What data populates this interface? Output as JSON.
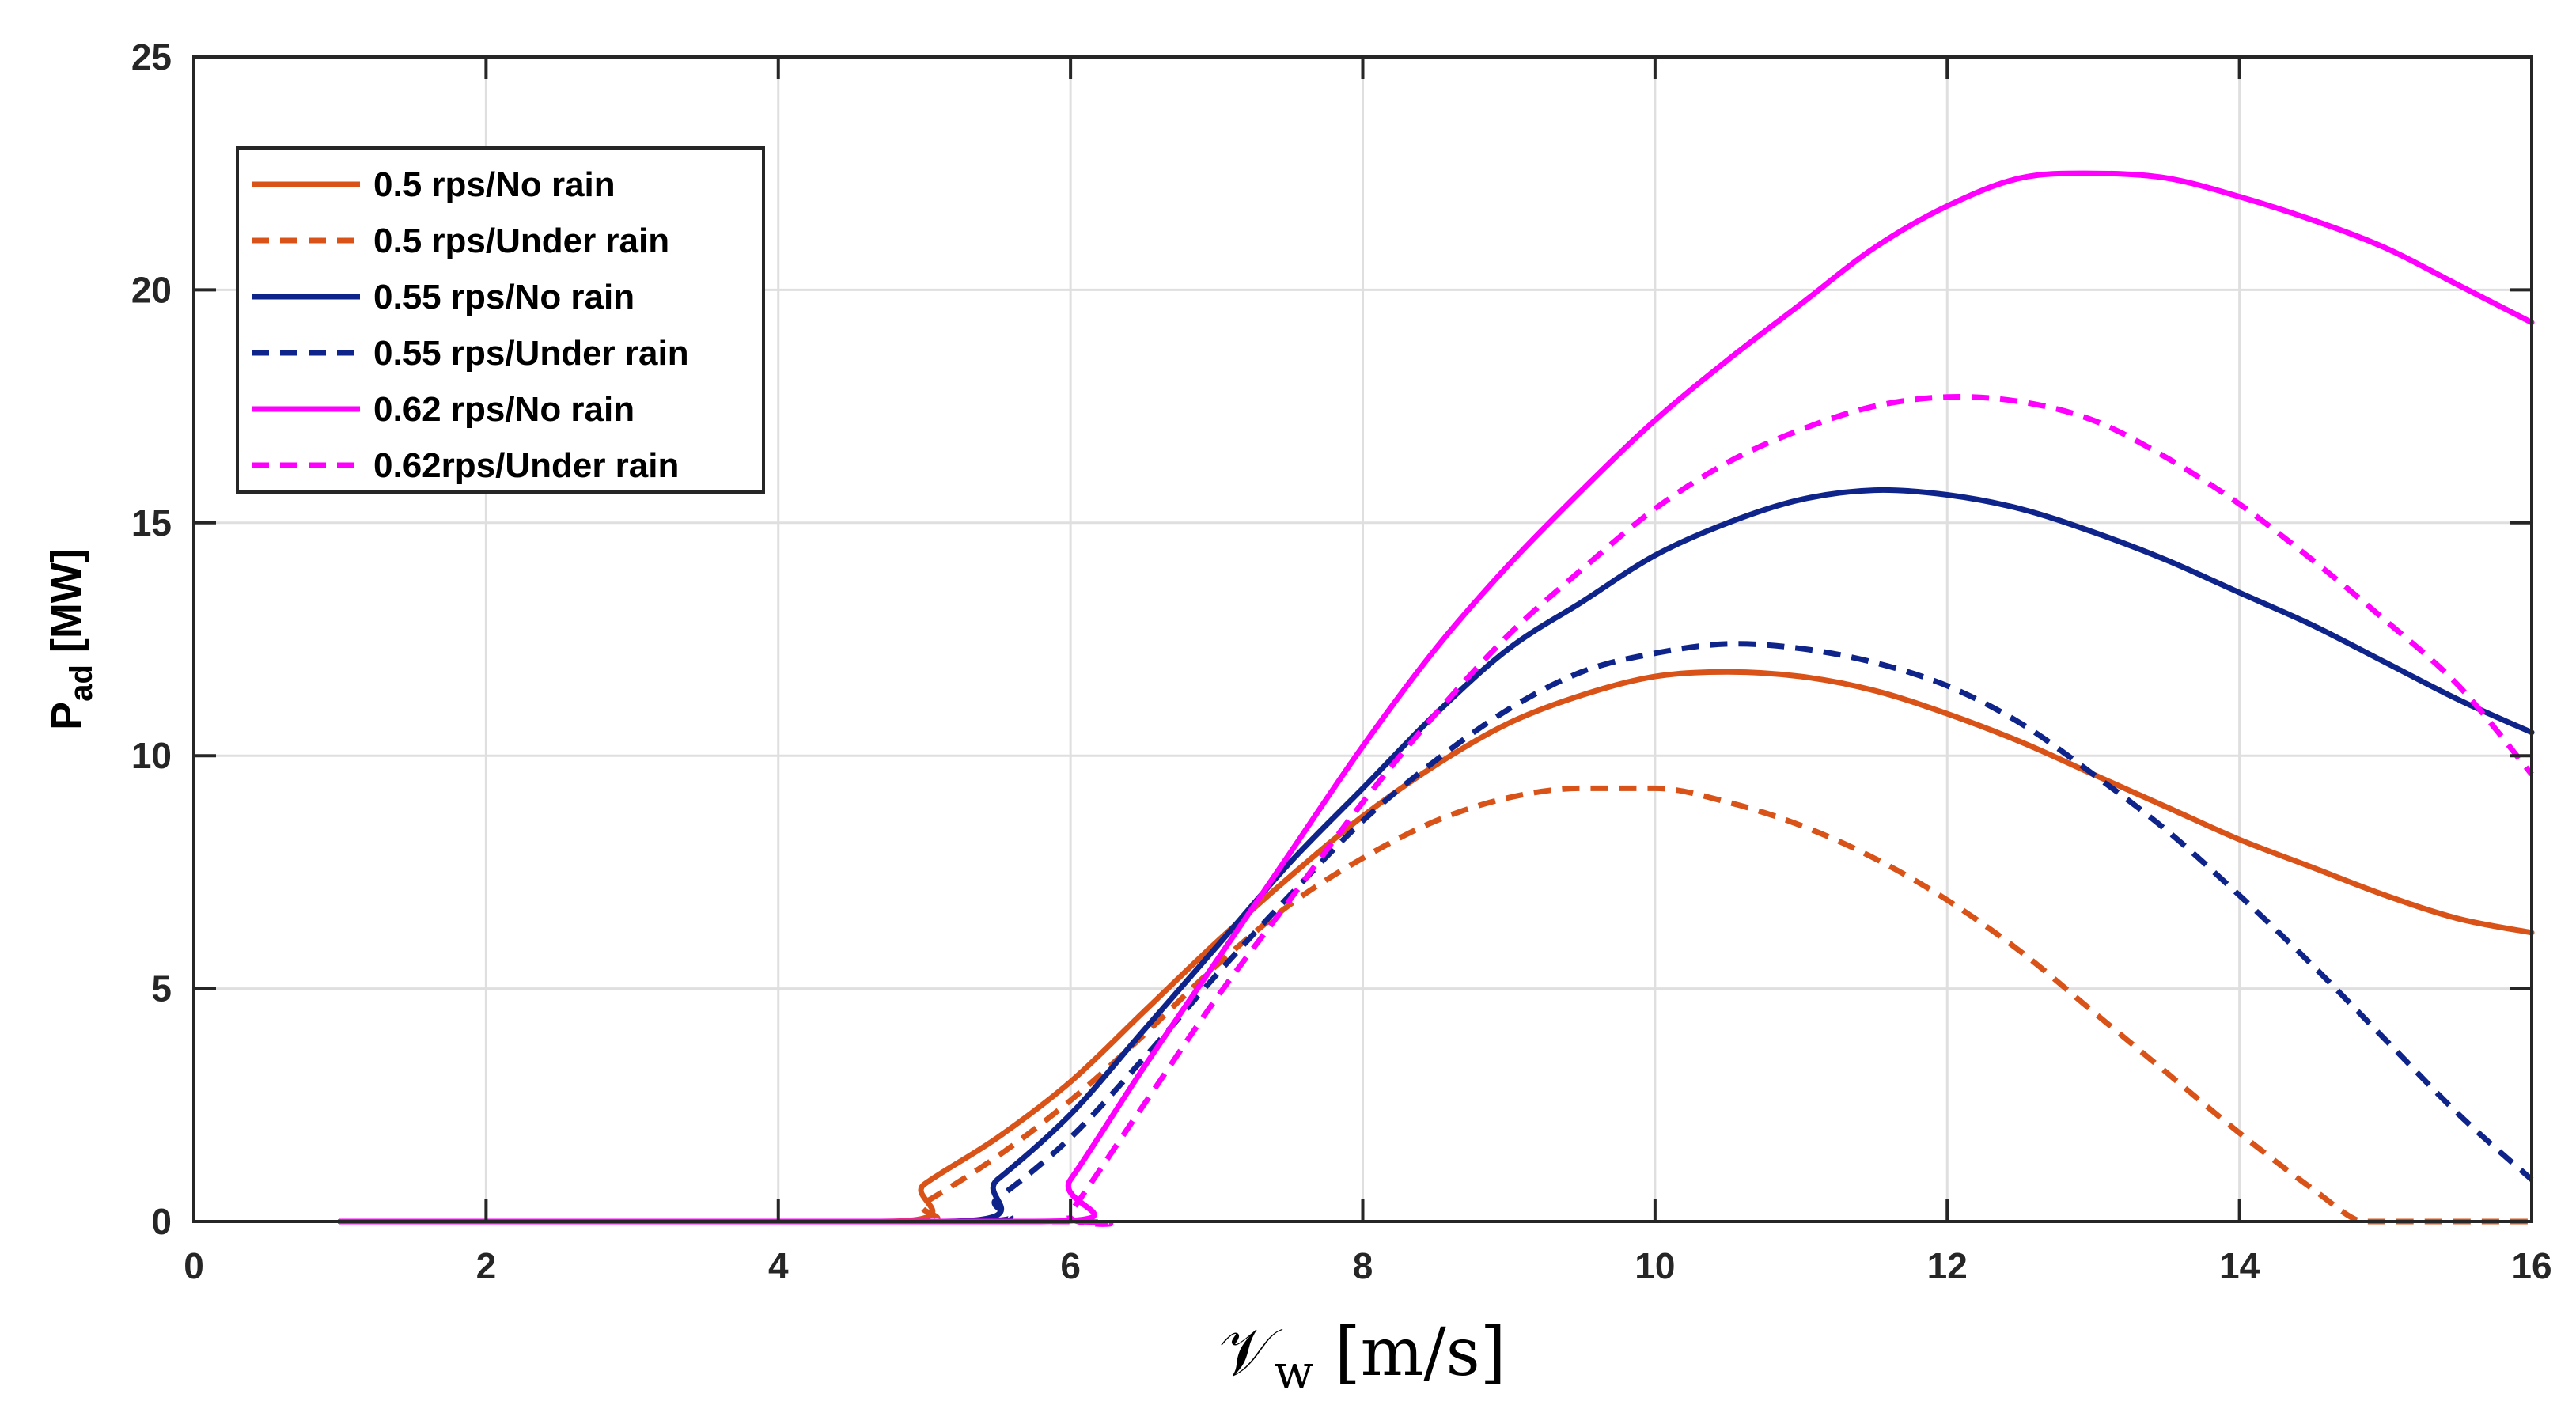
{
  "chart_data": {
    "type": "line",
    "title": "",
    "xlabel": "𝒱w [m/s]",
    "ylabel": "Pad [MW]",
    "ylabel_main": "P",
    "ylabel_sub": "ad",
    "ylabel_unit": " [MW]",
    "xlabel_main": "𝒱",
    "xlabel_sub": "w",
    "xlabel_unit": " [m/s]",
    "xlim": [
      0,
      16
    ],
    "ylim": [
      0,
      25
    ],
    "grid": true,
    "legend_position": "top-left",
    "xticks": [
      0,
      2,
      4,
      6,
      8,
      10,
      12,
      14,
      16
    ],
    "yticks": [
      0,
      5,
      10,
      15,
      20,
      25
    ],
    "xtick_labels": [
      "0",
      "2",
      "4",
      "6",
      "8",
      "10",
      "12",
      "14",
      "16"
    ],
    "ytick_labels": [
      "0",
      "5",
      "10",
      "15",
      "20",
      "25"
    ],
    "series": [
      {
        "name": "0.5 rps/No rain",
        "color": "#D95319",
        "style": "solid",
        "x": [
          1,
          4.7,
          5,
          5.5,
          6,
          6.5,
          7,
          7.5,
          8,
          8.5,
          9,
          9.5,
          10,
          10.5,
          11,
          11.5,
          12,
          12.5,
          13,
          13.5,
          14,
          14.5,
          15,
          15.5,
          16
        ],
        "y": [
          0,
          0,
          0.8,
          1.8,
          3.0,
          4.5,
          6.0,
          7.4,
          8.7,
          9.8,
          10.7,
          11.3,
          11.7,
          11.8,
          11.7,
          11.4,
          10.9,
          10.3,
          9.6,
          8.9,
          8.2,
          7.6,
          7.0,
          6.5,
          6.2
        ]
      },
      {
        "name": "0.5 rps/Under rain",
        "color": "#D95319",
        "style": "dashed",
        "x": [
          1,
          4.75,
          5,
          5.5,
          6,
          6.5,
          7,
          7.5,
          8,
          8.5,
          9,
          9.5,
          10,
          10.5,
          11,
          11.5,
          12,
          12.5,
          13,
          13.5,
          14,
          14.5,
          14.85,
          15,
          16
        ],
        "y": [
          0,
          0,
          0.4,
          1.4,
          2.6,
          4.0,
          5.5,
          6.8,
          7.8,
          8.6,
          9.1,
          9.3,
          9.3,
          9.0,
          8.5,
          7.8,
          6.9,
          5.8,
          4.5,
          3.2,
          1.9,
          0.7,
          0,
          0,
          0
        ]
      },
      {
        "name": "0.55 rps/No rain",
        "color": "#0F248A",
        "style": "solid",
        "x": [
          1,
          5.1,
          5.5,
          6,
          6.5,
          7,
          7.5,
          8,
          8.5,
          9,
          9.5,
          10,
          10.5,
          11,
          11.5,
          12,
          12.5,
          13,
          13.5,
          14,
          14.5,
          15,
          15.5,
          16
        ],
        "y": [
          0,
          0,
          0.9,
          2.3,
          4.1,
          5.9,
          7.7,
          9.3,
          10.9,
          12.3,
          13.3,
          14.3,
          15.0,
          15.5,
          15.7,
          15.6,
          15.3,
          14.8,
          14.2,
          13.5,
          12.8,
          12.0,
          11.2,
          10.5
        ]
      },
      {
        "name": "0.55 rps/Under rain",
        "color": "#0F248A",
        "style": "dashed",
        "x": [
          1,
          5.2,
          5.5,
          6,
          6.5,
          7,
          7.5,
          8,
          8.5,
          9,
          9.5,
          10,
          10.5,
          11,
          11.5,
          12,
          12.5,
          13,
          13.5,
          14,
          14.5,
          15,
          15.5,
          16
        ],
        "y": [
          0,
          0,
          0.5,
          1.8,
          3.5,
          5.3,
          7.0,
          8.6,
          9.9,
          11.0,
          11.8,
          12.2,
          12.4,
          12.3,
          12.0,
          11.5,
          10.7,
          9.6,
          8.4,
          7.0,
          5.5,
          3.9,
          2.3,
          0.9
        ]
      },
      {
        "name": "0.62 rps/No rain",
        "color": "#FF00FF",
        "style": "solid",
        "x": [
          1,
          5.75,
          6,
          6.5,
          7,
          7.5,
          8,
          8.5,
          9,
          9.5,
          10,
          10.5,
          11,
          11.5,
          12,
          12.5,
          13,
          13.5,
          14,
          14.5,
          15,
          15.5,
          16
        ],
        "y": [
          0,
          0,
          0.9,
          3.3,
          5.6,
          7.9,
          10.2,
          12.3,
          14.1,
          15.7,
          17.2,
          18.5,
          19.7,
          20.9,
          21.8,
          22.4,
          22.5,
          22.4,
          22.0,
          21.5,
          20.9,
          20.1,
          19.3
        ]
      },
      {
        "name": "0.62rps/Under rain",
        "color": "#FF00FF",
        "style": "dashed",
        "x": [
          1,
          5.9,
          6,
          6.5,
          7,
          7.5,
          8,
          8.5,
          9,
          9.5,
          10,
          10.5,
          11,
          11.5,
          12,
          12.5,
          13,
          13.5,
          14,
          14.5,
          15,
          15.5,
          16
        ],
        "y": [
          0,
          0,
          0.2,
          2.5,
          4.8,
          6.9,
          9.0,
          10.9,
          12.6,
          14.0,
          15.3,
          16.3,
          17.0,
          17.5,
          17.7,
          17.6,
          17.2,
          16.4,
          15.4,
          14.2,
          12.9,
          11.5,
          9.6
        ]
      }
    ]
  }
}
